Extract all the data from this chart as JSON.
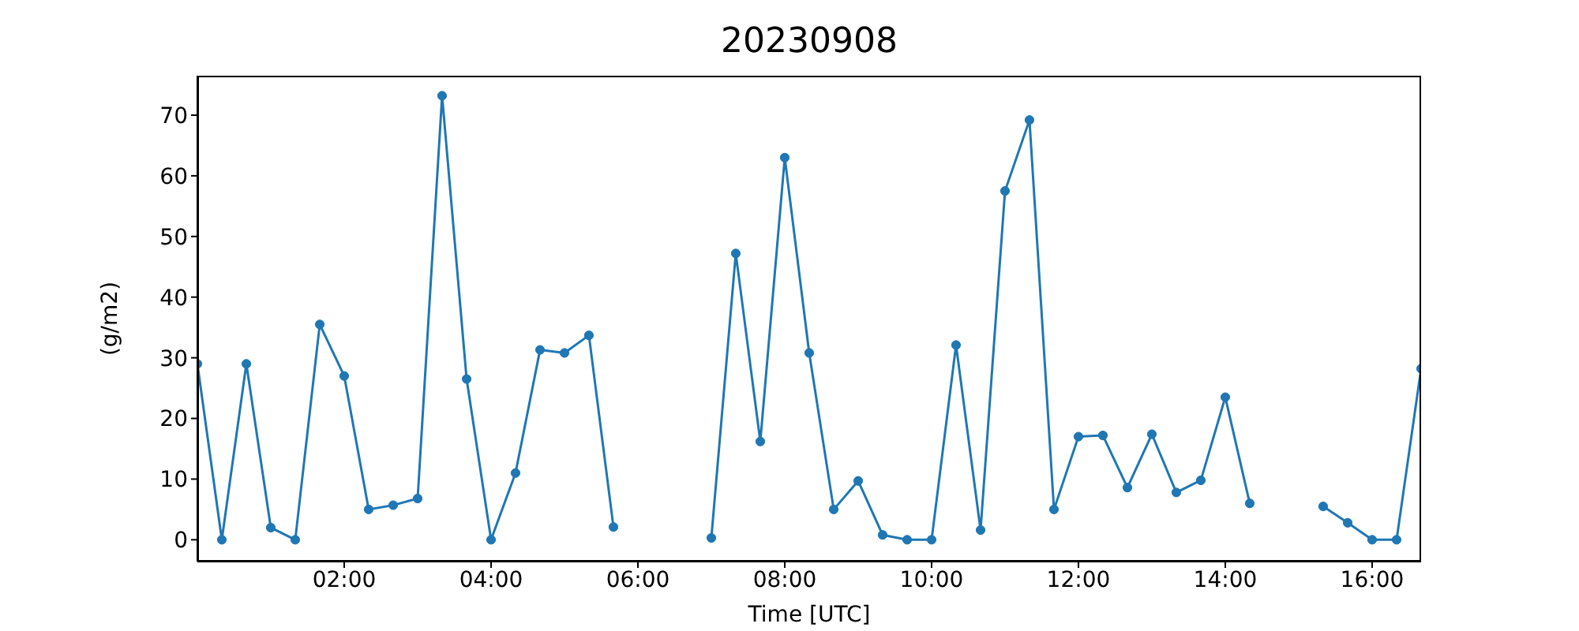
{
  "chart_data": {
    "type": "line",
    "title": "20230908",
    "xlabel": "Time [UTC]",
    "ylabel": "(g/m2)",
    "x": [
      0,
      0.333,
      0.667,
      1,
      1.333,
      1.667,
      2,
      2.333,
      2.667,
      3,
      3.333,
      3.667,
      4,
      4.333,
      4.667,
      5,
      5.333,
      5.667,
      6,
      6.333,
      6.667,
      7,
      7.333,
      7.667,
      8,
      8.333,
      8.667,
      9,
      9.333,
      9.667,
      10,
      10.333,
      10.667,
      11,
      11.333,
      11.667,
      12,
      12.333,
      12.667,
      13,
      13.333,
      13.667,
      14,
      14.333,
      14.667,
      15,
      15.333,
      15.667,
      16,
      16.333,
      16.667
    ],
    "series": [
      {
        "color": "#1f77b4",
        "values": [
          29,
          0,
          29,
          2,
          0,
          35.5,
          27,
          5,
          5.7,
          6.8,
          73.2,
          26.5,
          0,
          11,
          31.3,
          30.8,
          33.7,
          2.1,
          null,
          null,
          null,
          0.3,
          47.2,
          16.2,
          63,
          30.8,
          5,
          9.7,
          0.8,
          0,
          0,
          32.1,
          1.6,
          57.5,
          69.2,
          5,
          17,
          17.2,
          8.6,
          17.4,
          7.8,
          9.8,
          23.5,
          6,
          null,
          null,
          5.5,
          2.8,
          0,
          0,
          28.2
        ]
      }
    ],
    "xlim": [
      0,
      16.667
    ],
    "xticks": [
      {
        "value": 2,
        "label": "02:00"
      },
      {
        "value": 4,
        "label": "04:00"
      },
      {
        "value": 6,
        "label": "06:00"
      },
      {
        "value": 8,
        "label": "08:00"
      },
      {
        "value": 10,
        "label": "10:00"
      },
      {
        "value": 12,
        "label": "12:00"
      },
      {
        "value": 14,
        "label": "14:00"
      },
      {
        "value": 16,
        "label": "16:00"
      }
    ],
    "ylim": [
      -3.6,
      76.5
    ],
    "yticks": [
      0,
      10,
      20,
      30,
      40,
      50,
      60,
      70
    ],
    "marker": "circle",
    "line_style": "solid",
    "grid": false,
    "legend": false
  }
}
